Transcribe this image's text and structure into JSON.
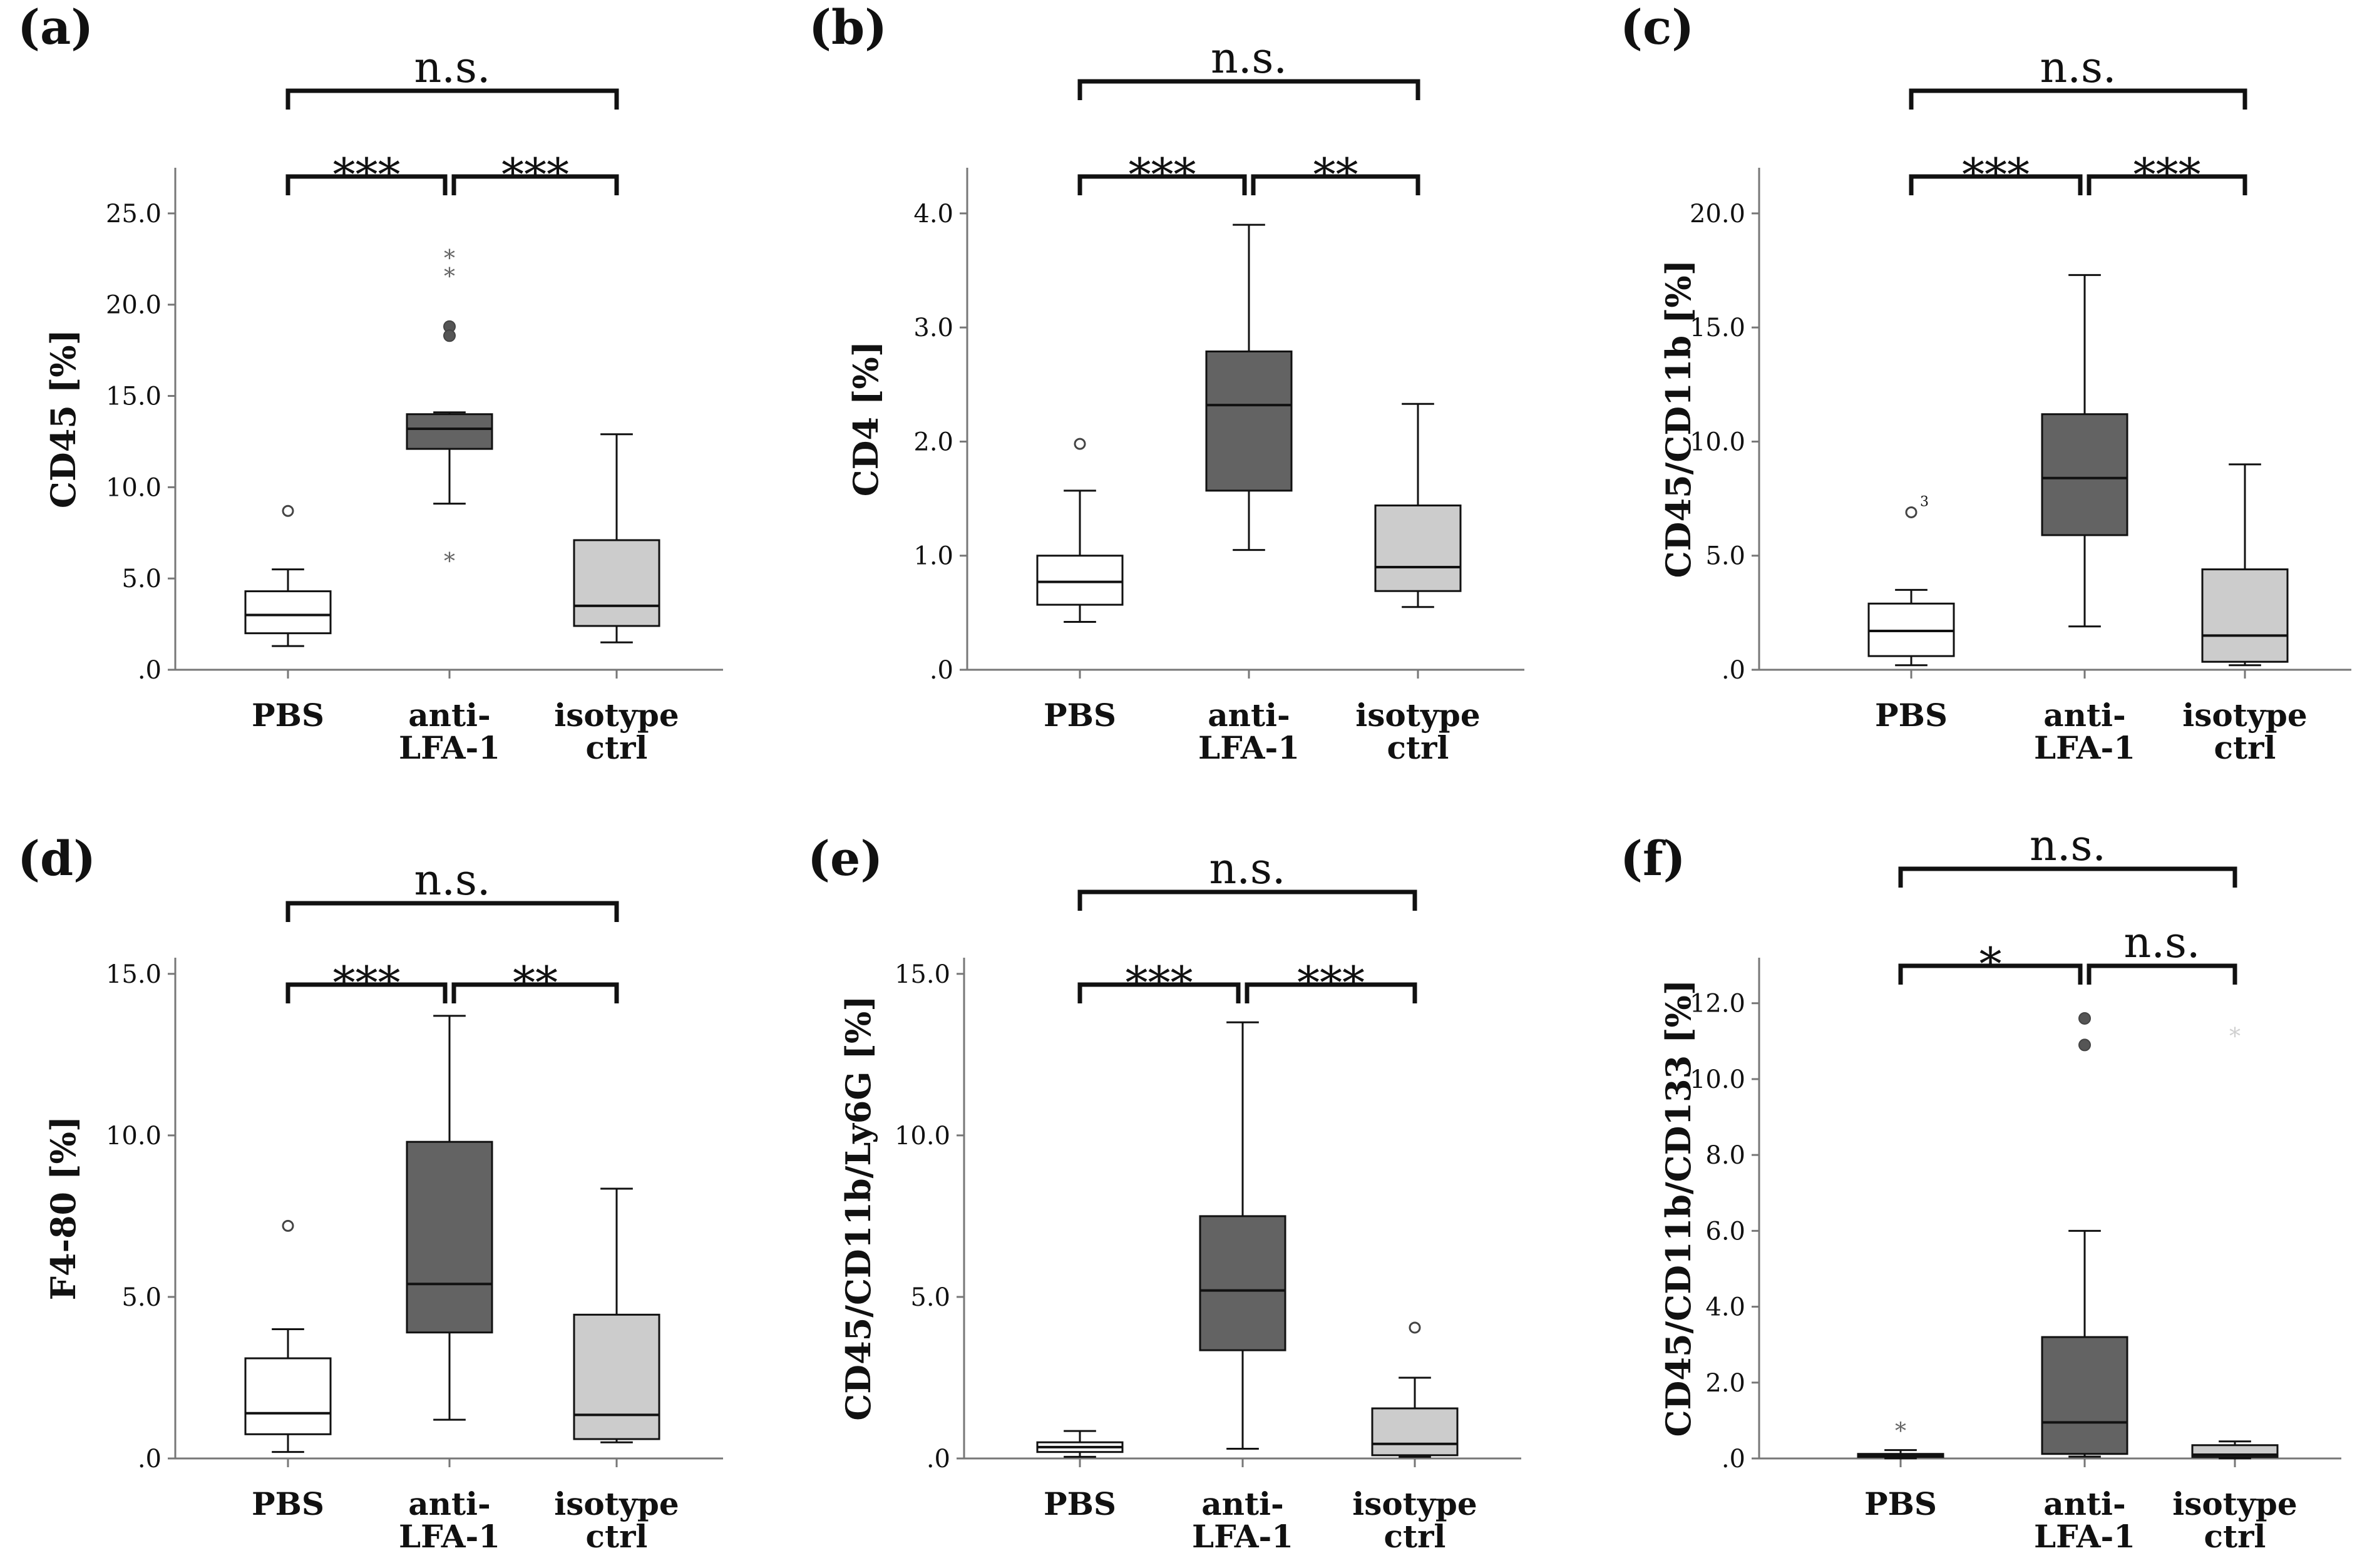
{
  "colors": {
    "PBS": "#ffffff",
    "anti-LFA-1": "#636363",
    "isotype ctrl": "#cccccc",
    "axis": "#777777",
    "ink": "#111111"
  },
  "chart_data": [
    {
      "type": "box",
      "panel": "(a)",
      "ylabel": "CD45 [%]",
      "ylim": [
        0,
        27.5
      ],
      "yticks": [
        0,
        5,
        10,
        15,
        20,
        25
      ],
      "ytick_labels": [
        ".0",
        "5.0",
        "10.0",
        "15.0",
        "20.0",
        "25.0"
      ],
      "categories": [
        [
          "PBS"
        ],
        [
          "anti-",
          "LFA-1"
        ],
        [
          "isotype",
          "ctrl"
        ]
      ],
      "boxes": [
        {
          "whisker_low": 1.3,
          "q1": 2.0,
          "median": 3.0,
          "q3": 4.3,
          "whisker_high": 5.5,
          "outliers": [
            {
              "value": 8.7,
              "marker": "circle"
            }
          ]
        },
        {
          "whisker_low": 9.1,
          "q1": 12.1,
          "median": 13.2,
          "q3": 14.0,
          "whisker_high": 14.1,
          "outliers": [
            {
              "value": 22.6,
              "marker": "star"
            },
            {
              "value": 21.6,
              "marker": "star"
            },
            {
              "value": 18.8,
              "marker": "dot"
            },
            {
              "value": 18.3,
              "marker": "dot"
            },
            {
              "value": 6.0,
              "marker": "star"
            }
          ]
        },
        {
          "whisker_low": 1.5,
          "q1": 2.4,
          "median": 3.5,
          "q3": 7.1,
          "whisker_high": 12.9,
          "outliers": []
        }
      ],
      "significance": [
        {
          "from": 0,
          "to": 1,
          "label": "***",
          "level": 1
        },
        {
          "from": 1,
          "to": 2,
          "label": "***",
          "level": 1
        },
        {
          "from": 0,
          "to": 2,
          "label": "n.s.",
          "level": 2
        }
      ]
    },
    {
      "type": "box",
      "panel": "(b)",
      "ylabel": "CD4 [%]",
      "ylim": [
        0,
        4.4
      ],
      "yticks": [
        0,
        1,
        2,
        3,
        4
      ],
      "ytick_labels": [
        ".0",
        "1.0",
        "2.0",
        "3.0",
        "4.0"
      ],
      "categories": [
        [
          "PBS"
        ],
        [
          "anti-",
          "LFA-1"
        ],
        [
          "isotype",
          "ctrl"
        ]
      ],
      "boxes": [
        {
          "whisker_low": 0.42,
          "q1": 0.57,
          "median": 0.77,
          "q3": 1.0,
          "whisker_high": 1.57,
          "outliers": [
            {
              "value": 1.98,
              "marker": "circle"
            }
          ]
        },
        {
          "whisker_low": 1.05,
          "q1": 1.57,
          "median": 2.32,
          "q3": 2.79,
          "whisker_high": 3.9,
          "outliers": []
        },
        {
          "whisker_low": 0.55,
          "q1": 0.69,
          "median": 0.9,
          "q3": 1.44,
          "whisker_high": 2.33,
          "outliers": []
        }
      ],
      "significance": [
        {
          "from": 0,
          "to": 1,
          "label": "***",
          "level": 1
        },
        {
          "from": 1,
          "to": 2,
          "label": "**",
          "level": 1
        },
        {
          "from": 0,
          "to": 2,
          "label": "n.s.",
          "level": 2
        }
      ]
    },
    {
      "type": "box",
      "panel": "(c)",
      "ylabel": "CD45/CD11b [%]",
      "ylim": [
        0,
        22
      ],
      "yticks": [
        0,
        5,
        10,
        15,
        20
      ],
      "ytick_labels": [
        ".0",
        "5.0",
        "10.0",
        "15.0",
        "20.0"
      ],
      "categories": [
        [
          "PBS"
        ],
        [
          "anti-",
          "LFA-1"
        ],
        [
          "isotype",
          "ctrl"
        ]
      ],
      "boxes": [
        {
          "whisker_low": 0.2,
          "q1": 0.6,
          "median": 1.7,
          "q3": 2.9,
          "whisker_high": 3.5,
          "outliers": [
            {
              "value": 6.9,
              "marker": "circle",
              "label": "3"
            }
          ]
        },
        {
          "whisker_low": 1.9,
          "q1": 5.9,
          "median": 8.4,
          "q3": 11.2,
          "whisker_high": 17.3,
          "outliers": []
        },
        {
          "whisker_low": 0.2,
          "q1": 0.35,
          "median": 1.5,
          "q3": 4.4,
          "whisker_high": 9.0,
          "outliers": []
        }
      ],
      "significance": [
        {
          "from": 0,
          "to": 1,
          "label": "***",
          "level": 1
        },
        {
          "from": 1,
          "to": 2,
          "label": "***",
          "level": 1
        },
        {
          "from": 0,
          "to": 2,
          "label": "n.s.",
          "level": 2
        }
      ]
    },
    {
      "type": "box",
      "panel": "(d)",
      "ylabel": "F4-80 [%]",
      "ylim": [
        0,
        15.5
      ],
      "yticks": [
        0,
        5,
        10,
        15
      ],
      "ytick_labels": [
        ".0",
        "5.0",
        "10.0",
        "15.0"
      ],
      "categories": [
        [
          "PBS"
        ],
        [
          "anti-",
          "LFA-1"
        ],
        [
          "isotype",
          "ctrl"
        ]
      ],
      "boxes": [
        {
          "whisker_low": 0.2,
          "q1": 0.75,
          "median": 1.4,
          "q3": 3.1,
          "whisker_high": 4.0,
          "outliers": [
            {
              "value": 7.2,
              "marker": "circle"
            }
          ]
        },
        {
          "whisker_low": 1.2,
          "q1": 3.9,
          "median": 5.4,
          "q3": 9.8,
          "whisker_high": 13.7,
          "outliers": []
        },
        {
          "whisker_low": 0.5,
          "q1": 0.6,
          "median": 1.35,
          "q3": 4.45,
          "whisker_high": 8.35,
          "outliers": []
        }
      ],
      "significance": [
        {
          "from": 0,
          "to": 1,
          "label": "***",
          "level": 1
        },
        {
          "from": 1,
          "to": 2,
          "label": "**",
          "level": 1
        },
        {
          "from": 0,
          "to": 2,
          "label": "n.s.",
          "level": 2
        }
      ]
    },
    {
      "type": "box",
      "panel": "(e)",
      "ylabel": "CD45/CD11b/Ly6G [%]",
      "ylim": [
        0,
        15.5
      ],
      "yticks": [
        0,
        5,
        10,
        15
      ],
      "ytick_labels": [
        ".0",
        "5.0",
        "10.0",
        "15.0"
      ],
      "categories": [
        [
          "PBS"
        ],
        [
          "anti-",
          "LFA-1"
        ],
        [
          "isotype",
          "ctrl"
        ]
      ],
      "boxes": [
        {
          "whisker_low": 0.05,
          "q1": 0.2,
          "median": 0.35,
          "q3": 0.5,
          "whisker_high": 0.85,
          "outliers": []
        },
        {
          "whisker_low": 0.3,
          "q1": 3.35,
          "median": 5.2,
          "q3": 7.5,
          "whisker_high": 13.5,
          "outliers": []
        },
        {
          "whisker_low": 0.05,
          "q1": 0.1,
          "median": 0.45,
          "q3": 1.55,
          "whisker_high": 2.5,
          "outliers": [
            {
              "value": 4.05,
              "marker": "circle"
            }
          ]
        }
      ],
      "significance": [
        {
          "from": 0,
          "to": 1,
          "label": "***",
          "level": 1
        },
        {
          "from": 1,
          "to": 2,
          "label": "***",
          "level": 1
        },
        {
          "from": 0,
          "to": 2,
          "label": "n.s.",
          "level": 2
        }
      ]
    },
    {
      "type": "box",
      "panel": "(f)",
      "ylabel": "CD45/CD11b/CD133 [%]",
      "ylim": [
        0,
        13.2
      ],
      "yticks": [
        0,
        2,
        4,
        6,
        8,
        10,
        12
      ],
      "ytick_labels": [
        ".0",
        "2.0",
        "4.0",
        "6.0",
        "8.0",
        "10.0",
        "12.0"
      ],
      "categories": [
        [
          "PBS"
        ],
        [
          "anti-",
          "LFA-1"
        ],
        [
          "isotype",
          "ctrl"
        ]
      ],
      "boxes": [
        {
          "whisker_low": 0.0,
          "q1": 0.04,
          "median": 0.07,
          "q3": 0.12,
          "whisker_high": 0.22,
          "outliers": [
            {
              "value": 0.75,
              "marker": "star"
            }
          ]
        },
        {
          "whisker_low": 0.05,
          "q1": 0.12,
          "median": 0.95,
          "q3": 3.2,
          "whisker_high": 6.0,
          "outliers": [
            {
              "value": 11.6,
              "marker": "dot"
            },
            {
              "value": 10.9,
              "marker": "dot"
            }
          ]
        },
        {
          "whisker_low": 0.0,
          "q1": 0.04,
          "median": 0.1,
          "q3": 0.35,
          "whisker_high": 0.45,
          "outliers": [
            {
              "value": 11.15,
              "marker": "star-faint"
            }
          ]
        }
      ],
      "significance": [
        {
          "from": 0,
          "to": 1,
          "label": "*",
          "level": 1
        },
        {
          "from": 1,
          "to": 2,
          "label": "n.s.",
          "level": 1
        },
        {
          "from": 0,
          "to": 2,
          "label": "n.s.",
          "level": 2
        }
      ]
    }
  ]
}
